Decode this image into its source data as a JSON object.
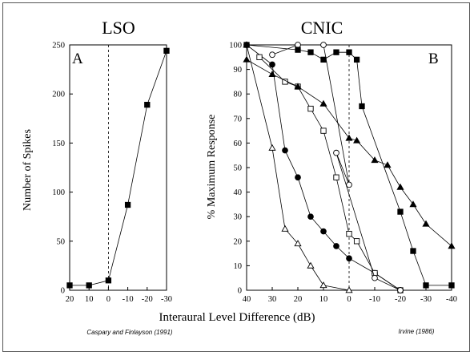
{
  "chart_data": [
    {
      "type": "line",
      "title": "LSO",
      "panel_label": "A",
      "ylabel": "Number of Spikes",
      "xlim": [
        20,
        -30
      ],
      "ylim": [
        0,
        250
      ],
      "x_ticks": [
        20,
        10,
        0,
        -10,
        -20,
        -30
      ],
      "y_ticks": [
        0,
        50,
        100,
        150,
        200,
        250
      ],
      "reference_line_x": 0,
      "series": [
        {
          "marker": "filled-square",
          "x": [
            20,
            10,
            0,
            -10,
            -20,
            -30
          ],
          "y": [
            5,
            5,
            10,
            87,
            189,
            244
          ]
        }
      ]
    },
    {
      "type": "line",
      "title": "CNIC",
      "panel_label": "B",
      "ylabel": "% Maximum Response",
      "xlim": [
        40,
        -40
      ],
      "ylim": [
        0,
        100
      ],
      "x_ticks": [
        40,
        30,
        20,
        10,
        0,
        -10,
        -20,
        -30,
        -40
      ],
      "y_ticks": [
        0,
        10,
        20,
        30,
        40,
        50,
        60,
        70,
        80,
        90,
        100
      ],
      "reference_line_x": 0,
      "series": [
        {
          "marker": "open-triangle",
          "x": [
            40,
            30,
            25,
            20,
            15,
            10,
            0
          ],
          "y": [
            100,
            58,
            25,
            19,
            10,
            2,
            0
          ]
        },
        {
          "marker": "filled-circle",
          "x": [
            40,
            30,
            25,
            20,
            15,
            10,
            5,
            0,
            -10,
            -20
          ],
          "y": [
            100,
            92,
            57,
            46,
            30,
            24,
            18,
            13,
            7,
            0
          ]
        },
        {
          "marker": "open-square",
          "x": [
            35,
            25,
            20,
            15,
            10,
            5,
            0,
            -3,
            -10,
            -20
          ],
          "y": [
            95,
            85,
            83,
            74,
            65,
            46,
            23,
            20,
            7,
            0
          ]
        },
        {
          "marker": "open-circle",
          "x": [
            30,
            20,
            10,
            0,
            5,
            -10,
            -20
          ],
          "y": [
            96,
            100,
            100,
            43,
            56,
            5,
            0
          ]
        },
        {
          "marker": "filled-triangle",
          "x": [
            40,
            30,
            20,
            10,
            0,
            -3,
            -10,
            -15,
            -20,
            -25,
            -30,
            -40
          ],
          "y": [
            94,
            88,
            83,
            76,
            62,
            61,
            53,
            51,
            42,
            35,
            27,
            18
          ]
        },
        {
          "marker": "filled-square",
          "x": [
            40,
            20,
            15,
            10,
            5,
            0,
            -3,
            -5,
            -20,
            -25,
            -30,
            -40
          ],
          "y": [
            100,
            98,
            97,
            94,
            97,
            97,
            94,
            75,
            32,
            16,
            2,
            2
          ]
        }
      ]
    }
  ],
  "xlabel": "Interaural Level Difference (dB)",
  "citations": {
    "left": "Caspary and Finlayson (1991)",
    "right": "Irvine (1986)"
  }
}
